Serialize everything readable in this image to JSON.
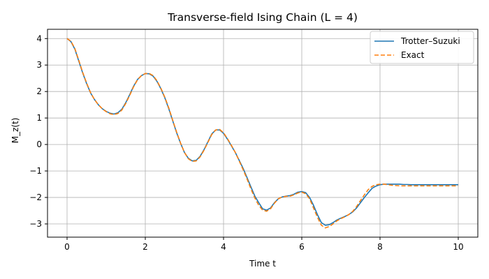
{
  "chart_data": {
    "type": "line",
    "title": "Transverse-field Ising Chain (L = 4)",
    "xlabel": "Time t",
    "ylabel": "M_z(t)",
    "xlim": [
      -0.5,
      10.5
    ],
    "ylim": [
      -3.5,
      4.35
    ],
    "xticks": [
      0,
      2,
      4,
      6,
      8,
      10
    ],
    "yticks": [
      4,
      3,
      2,
      1,
      0,
      -1,
      -2,
      -3
    ],
    "grid": true,
    "legend_position": "top-right",
    "series": [
      {
        "name": "Trotter–Suzuki",
        "color": "#1f77b4",
        "style": "solid",
        "x": [
          0,
          0.1,
          0.2,
          0.3,
          0.4,
          0.5,
          0.6,
          0.7,
          0.8,
          0.9,
          1.0,
          1.1,
          1.2,
          1.3,
          1.4,
          1.5,
          1.6,
          1.7,
          1.8,
          1.9,
          2.0,
          2.1,
          2.2,
          2.3,
          2.4,
          2.5,
          2.6,
          2.7,
          2.8,
          2.9,
          3.0,
          3.1,
          3.2,
          3.3,
          3.4,
          3.5,
          3.6,
          3.7,
          3.8,
          3.9,
          4.0,
          4.1,
          4.2,
          4.3,
          4.4,
          4.5,
          4.6,
          4.7,
          4.8,
          4.9,
          5.0,
          5.1,
          5.2,
          5.3,
          5.4,
          5.5,
          5.6,
          5.7,
          5.8,
          5.9,
          6.0,
          6.1,
          6.2,
          6.3,
          6.4,
          6.5,
          6.6,
          6.7,
          6.8,
          6.9,
          7.0,
          7.1,
          7.2,
          7.3,
          7.4,
          7.5,
          7.6,
          7.7,
          7.8,
          7.9,
          8.0,
          8.1,
          8.2,
          8.3,
          8.4,
          8.5,
          8.6,
          8.7,
          8.8,
          8.9,
          9.0,
          9.1,
          9.2,
          9.3,
          9.4,
          9.5,
          9.6,
          9.7,
          9.8,
          9.9,
          10.0
        ],
        "y": [
          4.0,
          3.88,
          3.6,
          3.15,
          2.7,
          2.3,
          1.95,
          1.7,
          1.5,
          1.35,
          1.25,
          1.18,
          1.15,
          1.2,
          1.33,
          1.58,
          1.88,
          2.2,
          2.45,
          2.6,
          2.68,
          2.67,
          2.58,
          2.38,
          2.1,
          1.76,
          1.35,
          0.9,
          0.45,
          0.05,
          -0.3,
          -0.52,
          -0.62,
          -0.6,
          -0.45,
          -0.2,
          0.1,
          0.4,
          0.55,
          0.55,
          0.42,
          0.2,
          -0.05,
          -0.3,
          -0.6,
          -0.9,
          -1.25,
          -1.6,
          -1.95,
          -2.2,
          -2.43,
          -2.48,
          -2.4,
          -2.2,
          -2.05,
          -1.98,
          -1.95,
          -1.93,
          -1.88,
          -1.8,
          -1.78,
          -1.82,
          -2.0,
          -2.3,
          -2.65,
          -2.95,
          -3.05,
          -3.03,
          -2.95,
          -2.85,
          -2.78,
          -2.72,
          -2.65,
          -2.55,
          -2.4,
          -2.2,
          -2.0,
          -1.82,
          -1.65,
          -1.57,
          -1.52,
          -1.5,
          -1.5,
          -1.5,
          -1.5,
          -1.5,
          -1.51,
          -1.51,
          -1.52,
          -1.52,
          -1.52,
          -1.52,
          -1.52,
          -1.52,
          -1.52,
          -1.52,
          -1.52,
          -1.52,
          -1.52,
          -1.52,
          -1.52
        ],
        "x_note": ""
      },
      {
        "name": "Exact",
        "color": "#ff7f0e",
        "style": "dashed",
        "x": [
          0,
          0.1,
          0.2,
          0.3,
          0.4,
          0.5,
          0.6,
          0.7,
          0.8,
          0.9,
          1.0,
          1.1,
          1.2,
          1.3,
          1.4,
          1.5,
          1.6,
          1.7,
          1.8,
          1.9,
          2.0,
          2.1,
          2.2,
          2.3,
          2.4,
          2.5,
          2.6,
          2.7,
          2.8,
          2.9,
          3.0,
          3.1,
          3.2,
          3.3,
          3.4,
          3.5,
          3.6,
          3.7,
          3.8,
          3.9,
          4.0,
          4.1,
          4.2,
          4.3,
          4.4,
          4.5,
          4.6,
          4.7,
          4.8,
          4.9,
          5.0,
          5.1,
          5.2,
          5.3,
          5.4,
          5.5,
          5.6,
          5.7,
          5.8,
          5.9,
          6.0,
          6.1,
          6.2,
          6.3,
          6.4,
          6.5,
          6.6,
          6.7,
          6.8,
          6.9,
          7.0,
          7.1,
          7.2,
          7.3,
          7.4,
          7.5,
          7.6,
          7.7,
          7.8,
          7.9,
          8.0,
          8.1,
          8.2,
          8.3,
          8.4,
          8.5,
          8.6,
          8.7,
          8.8,
          8.9,
          9.0,
          9.1,
          9.2,
          9.3,
          9.4,
          9.5,
          9.6,
          9.7,
          9.8,
          9.9,
          10.0
        ],
        "y": [
          4.0,
          3.9,
          3.62,
          3.18,
          2.72,
          2.32,
          1.96,
          1.7,
          1.5,
          1.35,
          1.24,
          1.16,
          1.13,
          1.17,
          1.3,
          1.55,
          1.85,
          2.18,
          2.44,
          2.6,
          2.68,
          2.68,
          2.6,
          2.4,
          2.12,
          1.78,
          1.38,
          0.92,
          0.47,
          0.06,
          -0.3,
          -0.54,
          -0.64,
          -0.62,
          -0.47,
          -0.22,
          0.08,
          0.38,
          0.55,
          0.57,
          0.44,
          0.22,
          -0.03,
          -0.3,
          -0.62,
          -0.95,
          -1.3,
          -1.68,
          -2.02,
          -2.3,
          -2.48,
          -2.52,
          -2.43,
          -2.22,
          -2.05,
          -1.98,
          -1.96,
          -1.95,
          -1.9,
          -1.83,
          -1.8,
          -1.86,
          -2.05,
          -2.4,
          -2.75,
          -3.05,
          -3.15,
          -3.1,
          -3.0,
          -2.88,
          -2.8,
          -2.73,
          -2.65,
          -2.53,
          -2.35,
          -2.12,
          -1.9,
          -1.7,
          -1.58,
          -1.52,
          -1.5,
          -1.5,
          -1.52,
          -1.54,
          -1.55,
          -1.56,
          -1.56,
          -1.56,
          -1.56,
          -1.56,
          -1.56,
          -1.56,
          -1.56,
          -1.56,
          -1.56,
          -1.56,
          -1.56,
          -1.56,
          -1.56,
          -1.56,
          -1.56
        ],
        "x_note": ""
      }
    ]
  }
}
